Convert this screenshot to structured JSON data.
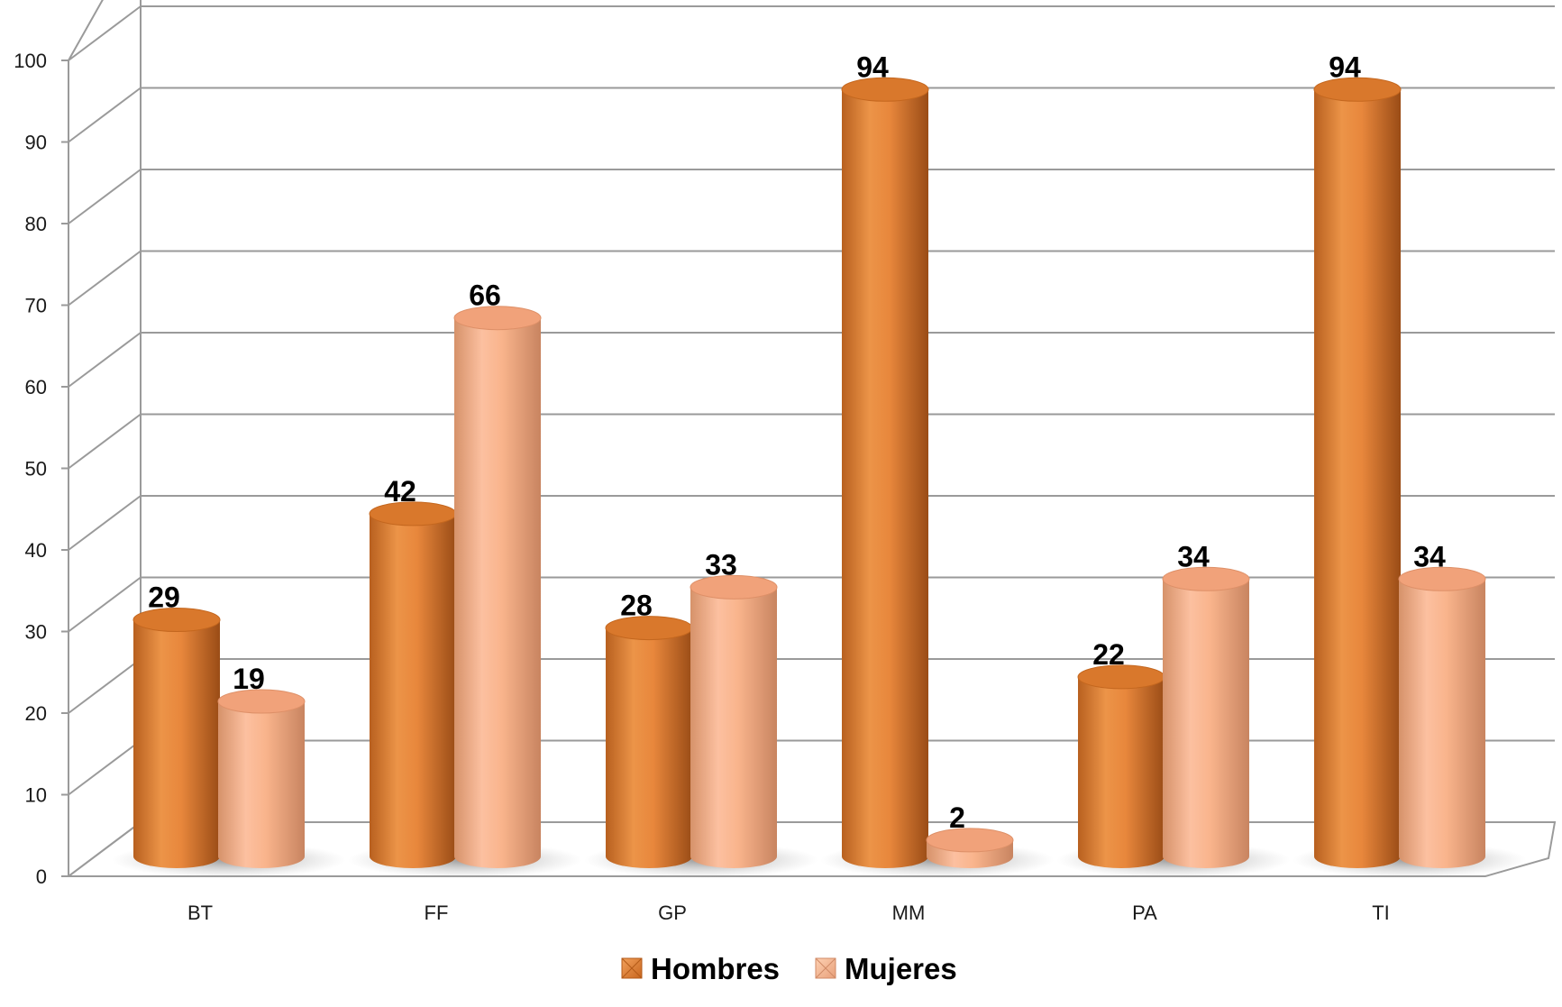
{
  "chart_data": {
    "type": "bar",
    "style": "3d-cylinder",
    "categories": [
      "BT",
      "FF",
      "GP",
      "MM",
      "PA",
      "TI"
    ],
    "series": [
      {
        "name": "Hombres",
        "values": [
          29,
          42,
          28,
          94,
          22,
          94
        ],
        "color": "#e8873c"
      },
      {
        "name": "Mujeres",
        "values": [
          19,
          66,
          33,
          2,
          34,
          34
        ],
        "color": "#f9b48c"
      }
    ],
    "ylim": [
      0,
      100
    ],
    "yticks": [
      "0",
      "10",
      "20",
      "30",
      "40",
      "50",
      "60",
      "70",
      "80",
      "90",
      "100"
    ],
    "grid": true,
    "legend_position": "bottom",
    "title": "",
    "xlabel": "",
    "ylabel": ""
  }
}
